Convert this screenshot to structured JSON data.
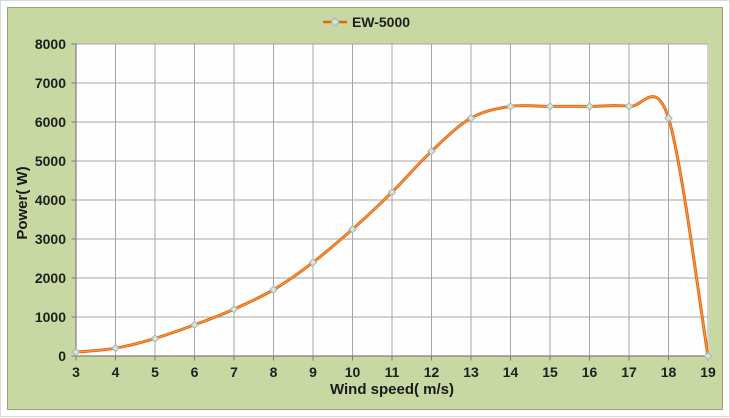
{
  "legend": {
    "series_label": "EW-5000",
    "position": "top-center"
  },
  "axes": {
    "x_title": "Wind speed( m/s)",
    "y_title": "Power( W)"
  },
  "colors": {
    "chart_bg": "#c7d8a2",
    "chart_border": "#96a577",
    "plot_bg": "#fefefe",
    "gridline": "#a6a6a6",
    "axis_line": "#7f7f7f",
    "series_line": "#e2670b",
    "series_line_highlight": "#f89a4e",
    "marker_fill": "#dbe7c2",
    "marker_stroke": "#9db4cb",
    "text": "#1f1f1f"
  },
  "chart_data": {
    "type": "line",
    "title": "",
    "xlabel": "Wind speed( m/s)",
    "ylabel": "Power( W)",
    "xlim": [
      3,
      19
    ],
    "ylim": [
      0,
      8000
    ],
    "x_ticks": [
      3,
      4,
      5,
      6,
      7,
      8,
      9,
      10,
      11,
      12,
      13,
      14,
      15,
      16,
      17,
      18,
      19
    ],
    "y_ticks": [
      0,
      1000,
      2000,
      3000,
      4000,
      5000,
      6000,
      7000,
      8000
    ],
    "grid": true,
    "legend_position": "top-center",
    "series": [
      {
        "name": "EW-5000",
        "marker": "diamond",
        "x": [
          3,
          4,
          5,
          6,
          7,
          8,
          9,
          10,
          11,
          12,
          13,
          14,
          15,
          16,
          17,
          18,
          19
        ],
        "values": [
          100,
          200,
          450,
          800,
          1200,
          1700,
          2400,
          3250,
          4200,
          5250,
          6100,
          6400,
          6400,
          6400,
          6400,
          6100,
          0
        ]
      }
    ]
  }
}
